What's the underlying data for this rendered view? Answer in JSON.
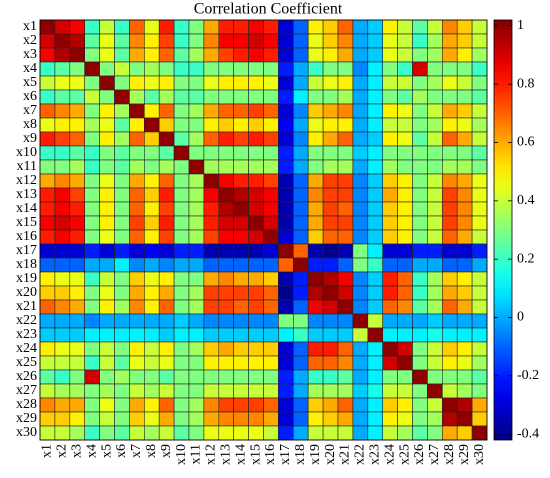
{
  "chart_data": {
    "type": "heatmap",
    "title": "Correlation Coefficient",
    "x_categories": [
      "x1",
      "x2",
      "x3",
      "x4",
      "x5",
      "x6",
      "x7",
      "x8",
      "x9",
      "x10",
      "x11",
      "x12",
      "x13",
      "x14",
      "x15",
      "x16",
      "x17",
      "x18",
      "x19",
      "x20",
      "x21",
      "x22",
      "x23",
      "x24",
      "x25",
      "x26",
      "x27",
      "x28",
      "x29",
      "x30"
    ],
    "y_categories": [
      "x1",
      "x2",
      "x3",
      "x4",
      "x5",
      "x6",
      "x7",
      "x8",
      "x9",
      "x10",
      "x11",
      "x12",
      "x13",
      "x14",
      "x15",
      "x16",
      "x17",
      "x18",
      "x19",
      "x20",
      "x21",
      "x22",
      "x23",
      "x24",
      "x25",
      "x26",
      "x27",
      "x28",
      "x29",
      "x30"
    ],
    "colormap": "jet",
    "zlim": [
      -0.42,
      1.02
    ],
    "zticks": [
      -0.4,
      -0.2,
      0,
      0.2,
      0.4,
      0.6,
      0.8,
      1
    ],
    "values": [
      [
        1,
        0.9,
        0.85,
        0.2,
        0.4,
        0.2,
        0.7,
        0.45,
        0.8,
        0.2,
        0.3,
        0.6,
        0.8,
        0.8,
        0.85,
        0.8,
        -0.3,
        -0.1,
        0.5,
        0.55,
        0.7,
        0,
        0.05,
        0.5,
        0.4,
        0.25,
        0.4,
        0.65,
        0.55,
        0.4
      ],
      [
        0.9,
        1,
        0.95,
        0.25,
        0.45,
        0.25,
        0.65,
        0.5,
        0.75,
        0.2,
        0.3,
        0.65,
        0.85,
        0.85,
        0.9,
        0.85,
        -0.3,
        -0.1,
        0.45,
        0.55,
        0.65,
        0,
        0.05,
        0.45,
        0.4,
        0.2,
        0.35,
        0.6,
        0.55,
        0.4
      ],
      [
        0.85,
        0.95,
        1,
        0.3,
        0.45,
        0.25,
        0.6,
        0.5,
        0.7,
        0.25,
        0.35,
        0.6,
        0.75,
        0.8,
        0.85,
        0.8,
        -0.3,
        -0.1,
        0.45,
        0.5,
        0.6,
        0,
        0.05,
        0.45,
        0.4,
        0.3,
        0.35,
        0.6,
        0.5,
        0.35
      ],
      [
        0.2,
        0.25,
        0.3,
        1,
        0.3,
        0.4,
        0.3,
        0.35,
        0.3,
        0.2,
        0.2,
        0.3,
        0.3,
        0.3,
        0.3,
        0.3,
        -0.2,
        0,
        0.2,
        0.3,
        0.3,
        -0.05,
        0.1,
        0.3,
        0.2,
        0.9,
        0.3,
        0.3,
        0.3,
        0.2
      ],
      [
        0.4,
        0.45,
        0.45,
        0.3,
        1,
        0.3,
        0.5,
        0.45,
        0.5,
        0.3,
        0.3,
        0.45,
        0.5,
        0.5,
        0.5,
        0.45,
        -0.3,
        0,
        0.4,
        0.45,
        0.5,
        0,
        0.1,
        0.4,
        0.4,
        0.3,
        0.35,
        0.45,
        0.4,
        0.3
      ],
      [
        0.2,
        0.25,
        0.25,
        0.4,
        0.3,
        1,
        0.35,
        0.25,
        0.35,
        0.25,
        0.25,
        0.3,
        0.3,
        0.3,
        0.3,
        0.3,
        -0.2,
        0.1,
        0.3,
        0.3,
        0.35,
        0,
        0.1,
        0.3,
        0.25,
        0.35,
        0.3,
        0.3,
        0.3,
        0.25
      ],
      [
        0.7,
        0.65,
        0.6,
        0.3,
        0.5,
        0.35,
        1,
        0.5,
        0.7,
        0.3,
        0.35,
        0.6,
        0.7,
        0.7,
        0.75,
        0.7,
        -0.3,
        -0.05,
        0.55,
        0.6,
        0.65,
        0,
        0.1,
        0.5,
        0.45,
        0.3,
        0.4,
        0.6,
        0.55,
        0.4
      ],
      [
        0.45,
        0.5,
        0.5,
        0.35,
        0.45,
        0.25,
        0.5,
        1,
        0.55,
        0.3,
        0.3,
        0.5,
        0.55,
        0.5,
        0.55,
        0.5,
        -0.25,
        0,
        0.45,
        0.5,
        0.5,
        0,
        0.1,
        0.4,
        0.4,
        0.3,
        0.35,
        0.5,
        0.45,
        0.35
      ],
      [
        0.8,
        0.75,
        0.7,
        0.3,
        0.5,
        0.35,
        0.7,
        0.55,
        1,
        0.25,
        0.35,
        0.7,
        0.8,
        0.75,
        0.8,
        0.75,
        -0.3,
        -0.05,
        0.5,
        0.6,
        0.7,
        0,
        0.05,
        0.5,
        0.45,
        0.25,
        0.4,
        0.7,
        0.6,
        0.4
      ],
      [
        0.2,
        0.2,
        0.25,
        0.2,
        0.3,
        0.25,
        0.3,
        0.3,
        0.25,
        1,
        0.3,
        0.3,
        0.3,
        0.3,
        0.3,
        0.3,
        -0.2,
        0,
        0.3,
        0.3,
        0.3,
        0.05,
        0.1,
        0.3,
        0.3,
        0.3,
        0.3,
        0.3,
        0.3,
        0.25
      ],
      [
        0.3,
        0.3,
        0.35,
        0.2,
        0.3,
        0.25,
        0.35,
        0.3,
        0.35,
        0.3,
        1,
        0.35,
        0.35,
        0.35,
        0.35,
        0.35,
        -0.2,
        0,
        0.3,
        0.35,
        0.35,
        0,
        0.1,
        0.35,
        0.3,
        0.3,
        0.3,
        0.35,
        0.35,
        0.3
      ],
      [
        0.6,
        0.65,
        0.6,
        0.3,
        0.45,
        0.3,
        0.6,
        0.5,
        0.7,
        0.3,
        0.35,
        1,
        0.85,
        0.8,
        0.8,
        0.75,
        -0.35,
        -0.1,
        0.6,
        0.75,
        0.75,
        -0.05,
        0.05,
        0.55,
        0.5,
        0.3,
        0.4,
        0.65,
        0.6,
        0.45
      ],
      [
        0.8,
        0.85,
        0.75,
        0.3,
        0.5,
        0.3,
        0.7,
        0.55,
        0.8,
        0.3,
        0.35,
        0.85,
        1,
        0.95,
        0.9,
        0.85,
        -0.35,
        -0.1,
        0.65,
        0.75,
        0.75,
        -0.05,
        0.05,
        0.6,
        0.5,
        0.3,
        0.4,
        0.75,
        0.65,
        0.45
      ],
      [
        0.8,
        0.85,
        0.8,
        0.3,
        0.5,
        0.3,
        0.7,
        0.5,
        0.75,
        0.3,
        0.35,
        0.8,
        0.95,
        1,
        0.9,
        0.85,
        -0.35,
        -0.1,
        0.6,
        0.75,
        0.7,
        -0.05,
        0.05,
        0.55,
        0.5,
        0.3,
        0.4,
        0.75,
        0.65,
        0.45
      ],
      [
        0.85,
        0.9,
        0.85,
        0.3,
        0.5,
        0.3,
        0.75,
        0.55,
        0.8,
        0.3,
        0.35,
        0.8,
        0.9,
        0.9,
        1,
        0.9,
        -0.35,
        -0.1,
        0.6,
        0.75,
        0.75,
        -0.05,
        0.05,
        0.55,
        0.5,
        0.3,
        0.4,
        0.75,
        0.65,
        0.45
      ],
      [
        0.8,
        0.85,
        0.8,
        0.3,
        0.45,
        0.3,
        0.7,
        0.5,
        0.75,
        0.3,
        0.35,
        0.75,
        0.85,
        0.85,
        0.9,
        1,
        -0.3,
        -0.1,
        0.55,
        0.7,
        0.7,
        -0.05,
        0.05,
        0.55,
        0.5,
        0.3,
        0.4,
        0.7,
        0.6,
        0.4
      ],
      [
        -0.3,
        -0.3,
        -0.3,
        -0.2,
        -0.3,
        -0.2,
        -0.3,
        -0.25,
        -0.3,
        -0.2,
        -0.2,
        -0.35,
        -0.35,
        -0.35,
        -0.35,
        -0.3,
        1,
        0.7,
        -0.35,
        -0.4,
        -0.35,
        0.3,
        0.1,
        -0.3,
        -0.3,
        -0.2,
        -0.2,
        -0.3,
        -0.3,
        -0.2
      ],
      [
        -0.1,
        -0.1,
        -0.1,
        0,
        0,
        0.1,
        -0.05,
        0,
        -0.05,
        0,
        0,
        -0.1,
        -0.1,
        -0.1,
        -0.1,
        -0.1,
        0.7,
        1,
        -0.2,
        -0.2,
        -0.1,
        0.3,
        0.2,
        -0.1,
        -0.1,
        0,
        0,
        -0.1,
        -0.1,
        0
      ],
      [
        0.5,
        0.45,
        0.45,
        0.2,
        0.4,
        0.3,
        0.55,
        0.45,
        0.5,
        0.3,
        0.3,
        0.6,
        0.65,
        0.6,
        0.6,
        0.55,
        -0.35,
        -0.2,
        1,
        0.95,
        0.85,
        -0.05,
        0.05,
        0.8,
        0.7,
        0.2,
        0.35,
        0.55,
        0.5,
        0.4
      ],
      [
        0.55,
        0.55,
        0.5,
        0.3,
        0.45,
        0.3,
        0.6,
        0.5,
        0.6,
        0.3,
        0.35,
        0.75,
        0.75,
        0.75,
        0.75,
        0.7,
        -0.4,
        -0.2,
        0.95,
        1,
        0.9,
        -0.05,
        0.05,
        0.8,
        0.7,
        0.2,
        0.35,
        0.6,
        0.55,
        0.4
      ],
      [
        0.7,
        0.65,
        0.6,
        0.3,
        0.5,
        0.35,
        0.65,
        0.5,
        0.7,
        0.3,
        0.35,
        0.75,
        0.75,
        0.7,
        0.75,
        0.7,
        -0.35,
        -0.1,
        0.85,
        0.9,
        1,
        -0.05,
        0.05,
        0.7,
        0.65,
        0.25,
        0.35,
        0.7,
        0.6,
        0.4
      ],
      [
        0,
        0,
        0,
        -0.05,
        0,
        0,
        0,
        0,
        0,
        0.05,
        0,
        -0.05,
        -0.05,
        -0.05,
        -0.05,
        -0.05,
        0.3,
        0.3,
        -0.05,
        -0.05,
        -0.05,
        1,
        0.4,
        0,
        0,
        0,
        0.05,
        0,
        0,
        0
      ],
      [
        0.05,
        0.05,
        0.05,
        0.1,
        0.1,
        0.1,
        0.1,
        0.1,
        0.05,
        0.1,
        0.1,
        0.05,
        0.05,
        0.05,
        0.05,
        0.05,
        0.1,
        0.2,
        0.05,
        0.05,
        0.05,
        0.4,
        1,
        0.1,
        0.1,
        0.1,
        0.15,
        0.1,
        0.1,
        0.1
      ],
      [
        0.5,
        0.45,
        0.45,
        0.3,
        0.4,
        0.3,
        0.5,
        0.4,
        0.5,
        0.3,
        0.35,
        0.55,
        0.6,
        0.55,
        0.55,
        0.55,
        -0.3,
        -0.1,
        0.8,
        0.8,
        0.7,
        0,
        0.1,
        1,
        0.9,
        0.3,
        0.4,
        0.55,
        0.5,
        0.4
      ],
      [
        0.4,
        0.4,
        0.4,
        0.2,
        0.4,
        0.25,
        0.45,
        0.4,
        0.45,
        0.3,
        0.3,
        0.5,
        0.5,
        0.5,
        0.5,
        0.5,
        -0.3,
        -0.1,
        0.7,
        0.7,
        0.65,
        0,
        0.1,
        0.9,
        1,
        0.3,
        0.4,
        0.5,
        0.45,
        0.35
      ],
      [
        0.25,
        0.2,
        0.3,
        0.9,
        0.3,
        0.35,
        0.3,
        0.3,
        0.25,
        0.3,
        0.3,
        0.3,
        0.3,
        0.3,
        0.3,
        0.3,
        -0.2,
        0,
        0.2,
        0.2,
        0.25,
        0,
        0.1,
        0.3,
        0.3,
        1,
        0.3,
        0.3,
        0.3,
        0.25
      ],
      [
        0.4,
        0.35,
        0.35,
        0.3,
        0.35,
        0.3,
        0.4,
        0.35,
        0.4,
        0.3,
        0.3,
        0.4,
        0.4,
        0.4,
        0.4,
        0.4,
        -0.2,
        0,
        0.35,
        0.35,
        0.35,
        0.05,
        0.15,
        0.4,
        0.4,
        0.3,
        1,
        0.4,
        0.35,
        0.3
      ],
      [
        0.65,
        0.6,
        0.6,
        0.3,
        0.45,
        0.3,
        0.6,
        0.5,
        0.7,
        0.3,
        0.35,
        0.65,
        0.75,
        0.75,
        0.75,
        0.7,
        -0.3,
        -0.1,
        0.55,
        0.6,
        0.7,
        0,
        0.1,
        0.55,
        0.5,
        0.3,
        0.4,
        1,
        0.95,
        0.6
      ],
      [
        0.55,
        0.55,
        0.5,
        0.3,
        0.4,
        0.3,
        0.55,
        0.45,
        0.6,
        0.3,
        0.35,
        0.6,
        0.65,
        0.65,
        0.65,
        0.6,
        -0.3,
        -0.1,
        0.5,
        0.55,
        0.6,
        0,
        0.1,
        0.5,
        0.45,
        0.3,
        0.35,
        0.95,
        1,
        0.55
      ],
      [
        0.4,
        0.4,
        0.35,
        0.2,
        0.3,
        0.25,
        0.4,
        0.35,
        0.4,
        0.25,
        0.3,
        0.45,
        0.45,
        0.45,
        0.45,
        0.4,
        -0.2,
        0,
        0.4,
        0.4,
        0.4,
        0,
        0.1,
        0.4,
        0.35,
        0.25,
        0.3,
        0.6,
        0.55,
        1
      ]
    ]
  }
}
